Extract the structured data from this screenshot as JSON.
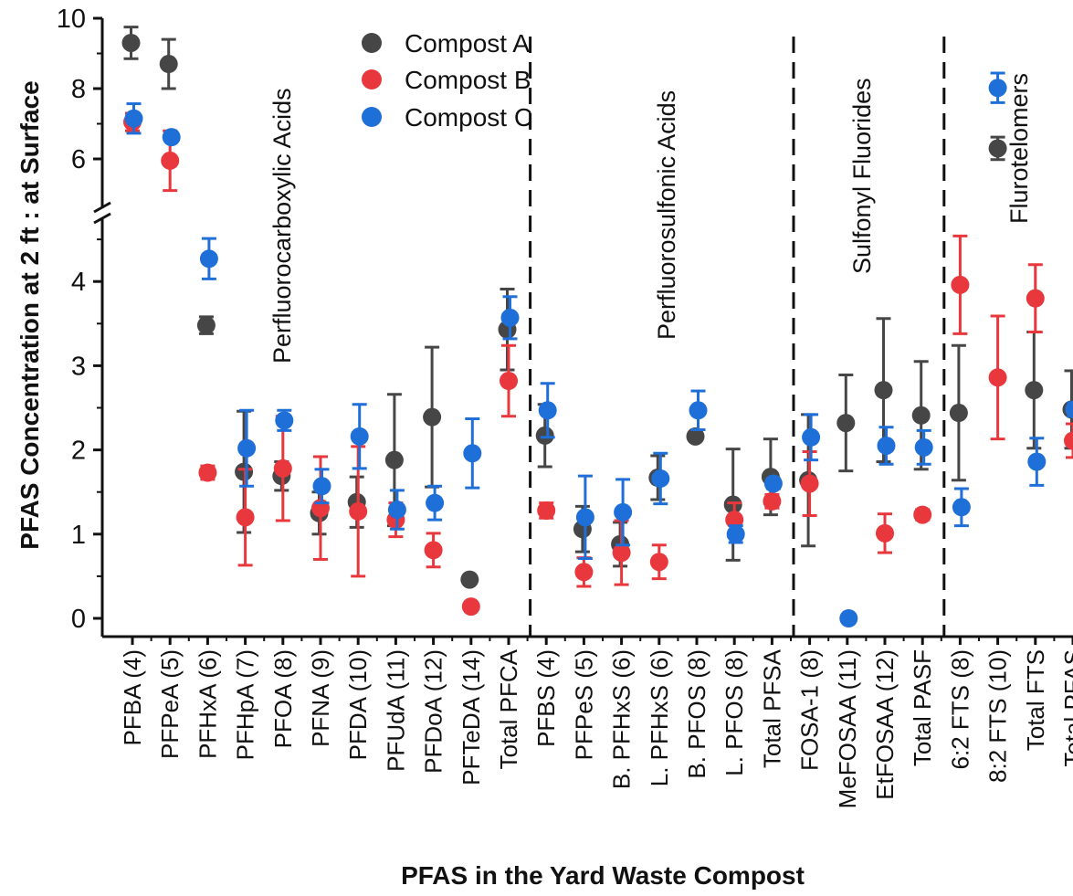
{
  "chart_data": {
    "type": "scatter",
    "xlabel": "PFAS in the Yard Waste Compost",
    "ylabel": "PFAS Concentration at 2 ft : at Surface",
    "ylim": [
      0,
      10
    ],
    "axis_break": [
      4.6,
      5.5
    ],
    "y_ticks": [
      "0",
      "1",
      "2",
      "3",
      "4",
      "6",
      "8",
      "10"
    ],
    "legend_position": "top-left",
    "categories": [
      "PFBA (4)",
      "PFPeA (5)",
      "PFHxA (6)",
      "PFHpA (7)",
      "PFOA (8)",
      "PFNA (9)",
      "PFDA (10)",
      "PFUdA (11)",
      "PFDoA (12)",
      "PFTeDA (14)",
      "Total PFCA",
      "PFBS (4)",
      "PFPeS (5)",
      "B. PFHxS (6)",
      "L. PFHxS  (6)",
      "B. PFOS (8)",
      "L. PFOS  (8)",
      "Total PFSA",
      "FOSA-1 (8)",
      "MeFOSAA (11)",
      "EtFOSAA (12)",
      "Total PASF",
      "6:2 FTS (8)",
      "8:2 FTS (10)",
      "Total FTS",
      "Total PFAS"
    ],
    "groups": [
      {
        "label": "Perfluorocarboxylic Acids",
        "start": 0,
        "end": 10
      },
      {
        "label": "Perfluorosulfonic Acids",
        "start": 11,
        "end": 17
      },
      {
        "label": "Sulfonyl Fluorides",
        "start": 18,
        "end": 21
      },
      {
        "label": "Flurotelomers",
        "start": 22,
        "end": 25
      }
    ],
    "series": [
      {
        "name": "Compost A",
        "color": "#464646",
        "values": [
          9.3,
          8.7,
          3.48,
          1.74,
          1.69,
          1.25,
          1.38,
          1.88,
          2.39,
          0.46,
          3.43,
          2.17,
          1.06,
          0.88,
          1.67,
          2.16,
          1.35,
          1.68,
          1.64,
          2.32,
          2.71,
          2.41,
          2.44,
          null,
          2.71,
          2.48
        ],
        "errors": [
          0.45,
          0.7,
          0.1,
          0.72,
          0.17,
          0.25,
          0.3,
          0.78,
          0.83,
          0.03,
          0.48,
          0.37,
          0.27,
          0.26,
          0.26,
          0.04,
          0.66,
          0.45,
          0.78,
          0.57,
          0.85,
          0.64,
          0.8,
          null,
          0.69,
          0.46
        ]
      },
      {
        "name": "Compost B",
        "color": "#e8383d",
        "values": [
          7.05,
          5.95,
          1.73,
          1.2,
          1.78,
          1.31,
          1.27,
          1.17,
          0.81,
          0.14,
          2.82,
          1.28,
          0.55,
          0.78,
          0.67,
          null,
          1.17,
          1.39,
          1.6,
          null,
          1.01,
          1.23,
          3.96,
          2.86,
          3.8,
          2.11
        ],
        "errors": [
          0.25,
          0.85,
          0.08,
          0.57,
          0.62,
          0.61,
          0.77,
          0.2,
          0.2,
          0.02,
          0.42,
          0.09,
          0.17,
          0.38,
          0.2,
          null,
          0.2,
          0.08,
          0.38,
          null,
          0.23,
          0.06,
          0.58,
          0.73,
          0.4,
          0.2
        ]
      },
      {
        "name": "Compost C",
        "color": "#1f6fd9",
        "values": [
          7.15,
          6.62,
          4.27,
          2.02,
          2.35,
          1.57,
          2.16,
          1.29,
          1.37,
          1.96,
          3.57,
          2.47,
          1.2,
          1.26,
          1.66,
          2.47,
          1.0,
          1.6,
          2.15,
          0.0,
          2.05,
          2.03,
          1.32,
          null,
          1.86,
          2.48
        ],
        "errors": [
          0.42,
          0.0,
          0.24,
          0.45,
          0.12,
          0.2,
          0.38,
          0.23,
          0.2,
          0.41,
          0.25,
          0.32,
          0.49,
          0.39,
          0.3,
          0.23,
          0.1,
          0.06,
          0.27,
          0.0,
          0.22,
          0.2,
          0.22,
          null,
          0.28,
          0.08
        ]
      }
    ],
    "extra_points": [
      {
        "series": "Compost C",
        "value": 8.02,
        "error": 0.42,
        "category_position": 23.0
      },
      {
        "series": "Compost A",
        "value": 6.3,
        "error": 0.32,
        "category_position": 23.0
      }
    ]
  }
}
